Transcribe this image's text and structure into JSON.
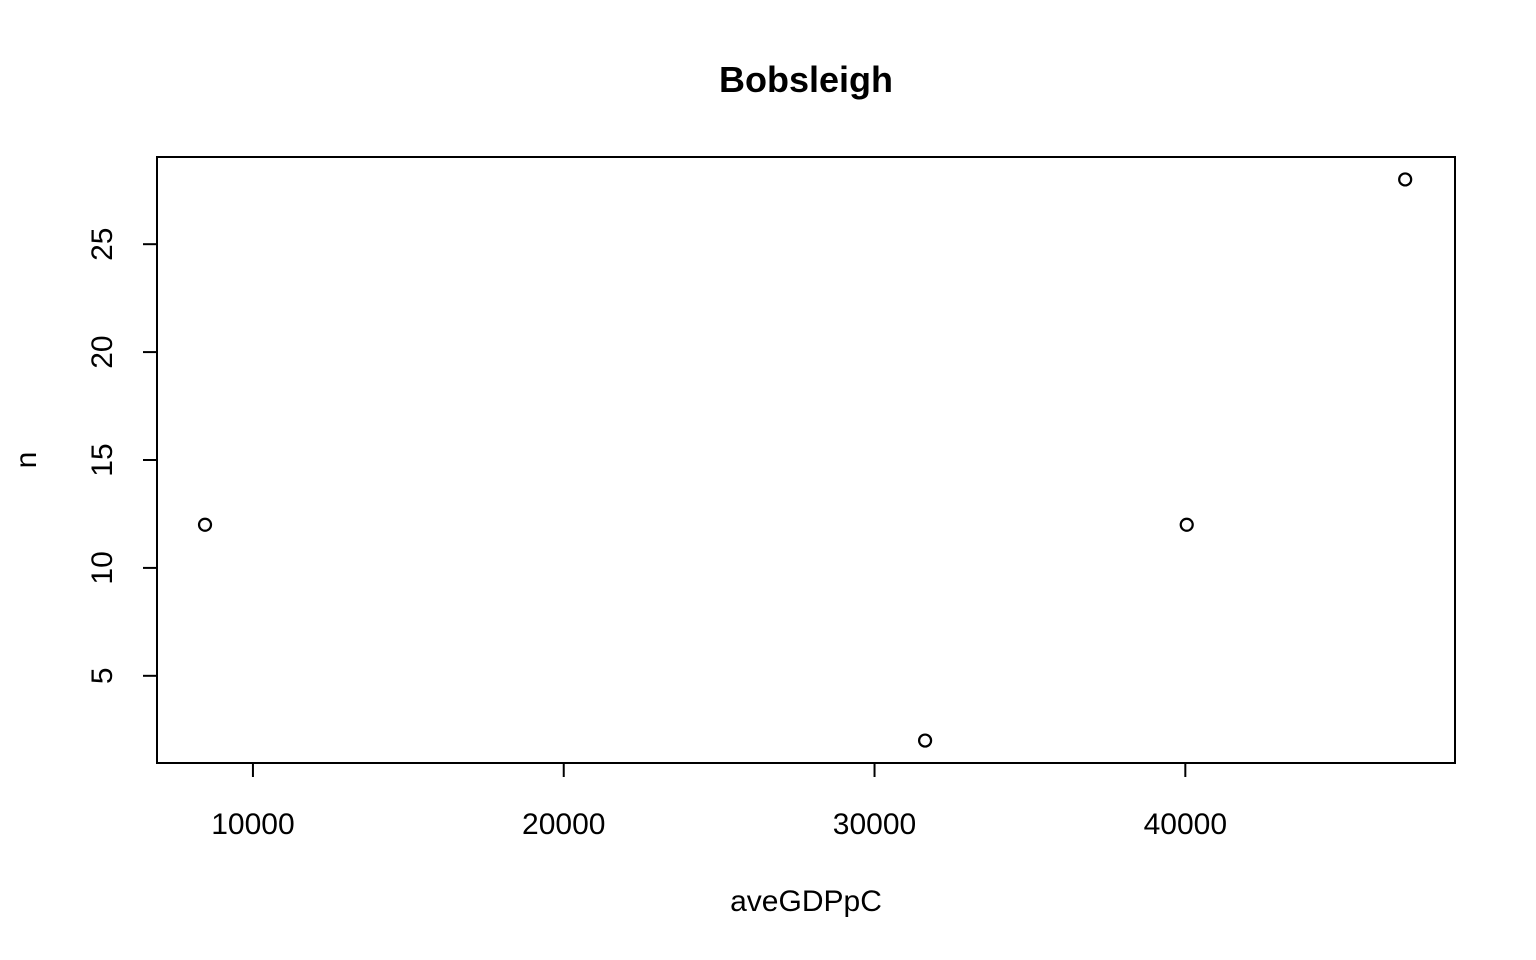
{
  "chart_data": {
    "type": "scatter",
    "title": "Bobsleigh",
    "xlabel": "aveGDPpC",
    "ylabel": "n",
    "xlim": [
      6913,
      48677
    ],
    "ylim": [
      0.96,
      29.04
    ],
    "x_ticks": [
      10000,
      20000,
      30000,
      40000
    ],
    "x_tick_labels": [
      "10000",
      "20000",
      "30000",
      "40000"
    ],
    "y_ticks": [
      5,
      10,
      15,
      20,
      25
    ],
    "y_tick_labels": [
      "5",
      "10",
      "15",
      "20",
      "25"
    ],
    "grid": false,
    "legend": null,
    "points": [
      {
        "x": 8458,
        "y": 12
      },
      {
        "x": 31627,
        "y": 2
      },
      {
        "x": 40045,
        "y": 12
      },
      {
        "x": 47074,
        "y": 28
      }
    ],
    "colors": {
      "marker_stroke": "#000000",
      "marker_fill": "#ffffff",
      "axes": "#000000",
      "background": "#ffffff"
    }
  }
}
